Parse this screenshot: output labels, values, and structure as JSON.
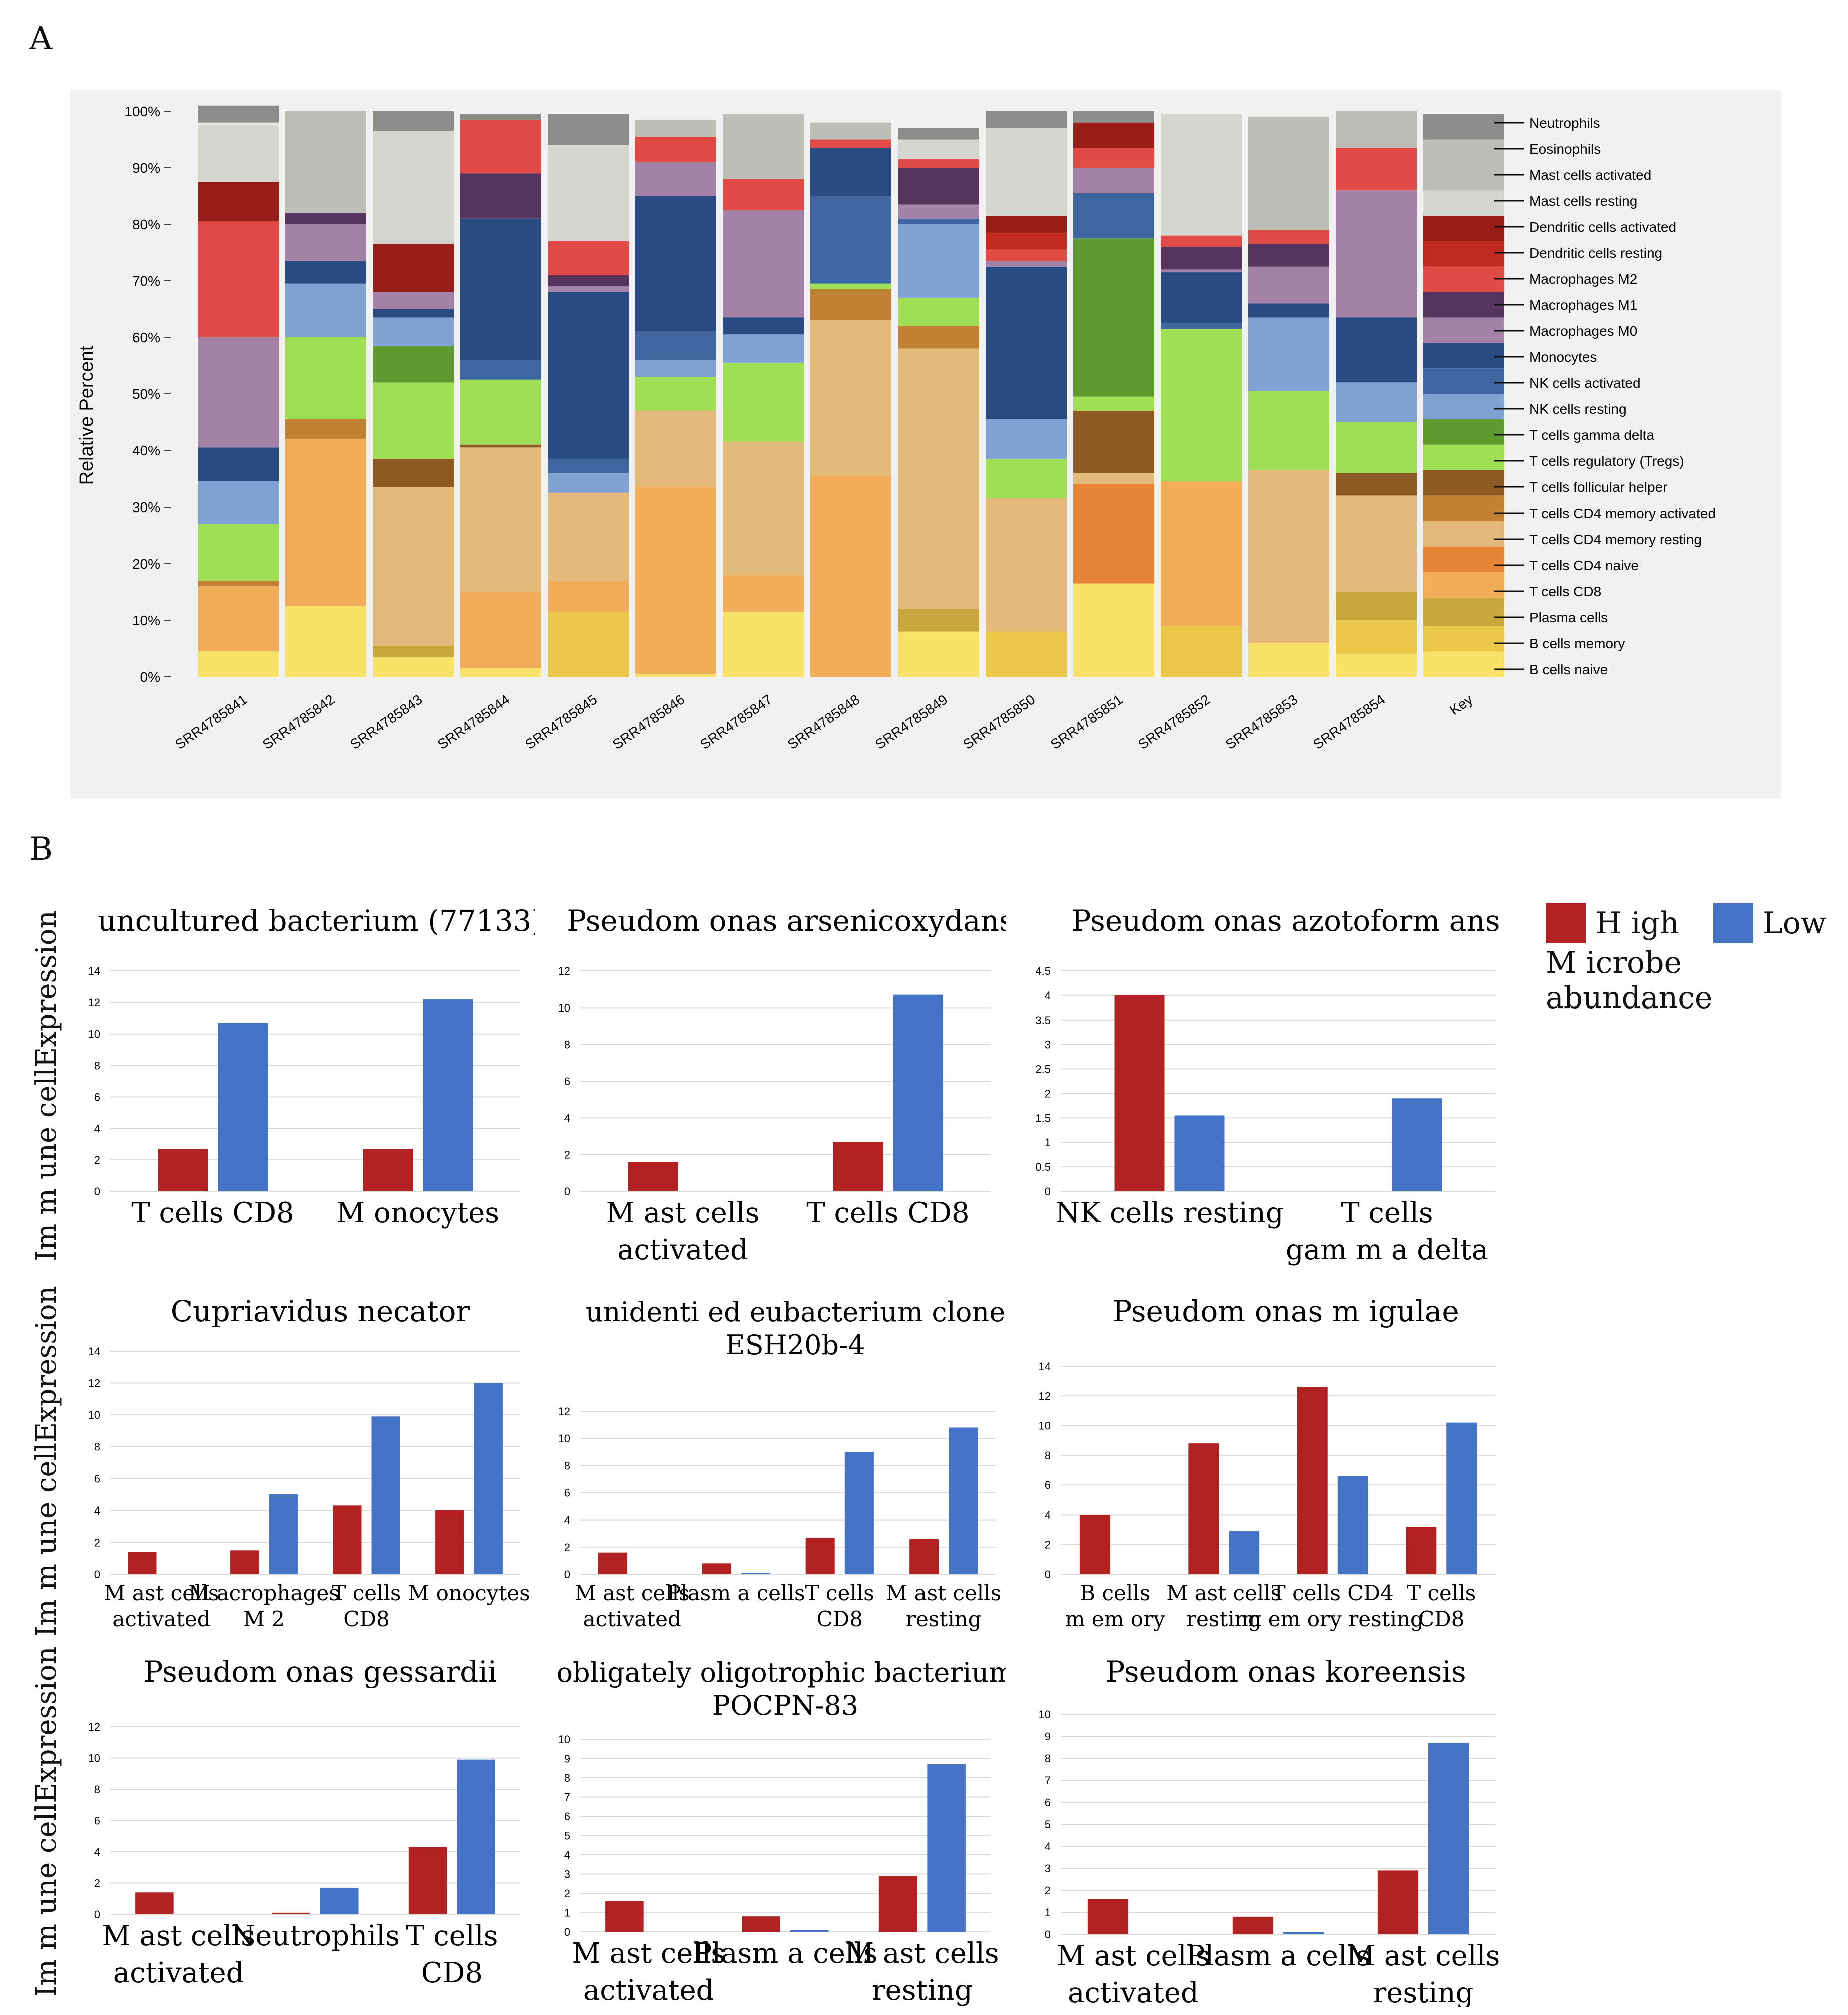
{
  "panel_labels": {
    "a": "A",
    "b": "B"
  },
  "chart_data": [
    {
      "id": "A",
      "type": "bar",
      "stacked": true,
      "ylabel": "Relative Percent",
      "yticks": [
        "0%",
        "10%",
        "20%",
        "30%",
        "40%",
        "50%",
        "60%",
        "70%",
        "80%",
        "90%",
        "100%"
      ],
      "ylim": [
        0,
        100
      ],
      "categories": [
        "SRR4785841",
        "SRR4785842",
        "SRR4785843",
        "SRR4785844",
        "SRR4785845",
        "SRR4785846",
        "SRR4785847",
        "SRR4785848",
        "SRR4785849",
        "SRR4785850",
        "SRR4785851",
        "SRR4785852",
        "SRR4785853",
        "SRR4785854",
        "Key"
      ],
      "series": [
        {
          "name": "B cells naive",
          "color": "#f8e26a",
          "values": [
            4.5,
            12.5,
            3.5,
            1.5,
            0,
            0.5,
            11.5,
            0,
            8,
            0,
            16.5,
            0,
            6,
            4,
            4.5
          ]
        },
        {
          "name": "B cells memory",
          "color": "#e9c84a",
          "values": [
            0,
            0,
            0,
            0,
            11.5,
            0,
            0,
            0,
            0,
            8,
            0,
            9,
            0,
            6,
            4.5
          ]
        },
        {
          "name": "Plasma cells",
          "color": "#c8a83c",
          "values": [
            0,
            0,
            2,
            0,
            0,
            0,
            0,
            0,
            4,
            0,
            0,
            0,
            0,
            5,
            5
          ]
        },
        {
          "name": "T cells CD8",
          "color": "#f2ad5a",
          "values": [
            11.5,
            29.5,
            0,
            13.5,
            5.5,
            33,
            6.5,
            35.5,
            0,
            0,
            0,
            25.5,
            0,
            0,
            4.5
          ]
        },
        {
          "name": "T cells CD4 naive",
          "color": "#e98436",
          "values": [
            0,
            0,
            0,
            0,
            0,
            0,
            0,
            0,
            0,
            0,
            17.5,
            0,
            0,
            0,
            4.5
          ]
        },
        {
          "name": "T cells CD4 memory resting",
          "color": "#e4ba7a",
          "values": [
            0,
            0,
            28,
            25.5,
            15.5,
            13.5,
            23.5,
            27.5,
            46,
            23.5,
            2,
            0,
            30.5,
            17,
            4.5
          ]
        },
        {
          "name": "T cells CD4 memory activated",
          "color": "#c18134",
          "values": [
            1,
            3.5,
            0,
            0,
            0,
            0,
            0,
            5.5,
            4,
            0,
            0,
            0,
            0,
            0,
            4.5
          ]
        },
        {
          "name": "T cells follicular helper",
          "color": "#8d5a24",
          "values": [
            0,
            0,
            5,
            0.5,
            0,
            0,
            0,
            0,
            0,
            0,
            11,
            0,
            0,
            4,
            4.5
          ]
        },
        {
          "name": "T cells regulatory (Tregs)",
          "color": "#a0de55",
          "values": [
            10,
            14.5,
            13.5,
            11.5,
            0,
            6,
            14,
            1,
            5,
            7,
            2.5,
            27,
            14,
            9,
            4.5
          ]
        },
        {
          "name": "T cells gamma delta",
          "color": "#5e9a30",
          "values": [
            0,
            0,
            6.5,
            0,
            0,
            0,
            0,
            0,
            0,
            0,
            28,
            0,
            0,
            0,
            4.5
          ]
        },
        {
          "name": "NK cells resting",
          "color": "#7fa2d2",
          "values": [
            7.5,
            9.5,
            5,
            0,
            3.5,
            3,
            5,
            0,
            13,
            7,
            0,
            0,
            13,
            7,
            4.5
          ]
        },
        {
          "name": "NK cells activated",
          "color": "#3f66a0",
          "values": [
            0,
            0,
            0,
            3.5,
            2.5,
            5,
            0,
            15.5,
            1,
            0,
            8,
            1,
            0,
            0,
            4.5
          ]
        },
        {
          "name": "Monocytes",
          "color": "#2a4b82",
          "values": [
            6,
            4,
            1.5,
            25,
            29.5,
            24,
            3,
            8.5,
            0,
            27,
            0,
            9,
            2.5,
            11.5,
            4.5
          ]
        },
        {
          "name": "Macrophages M0",
          "color": "#a481a6",
          "values": [
            19.5,
            6.5,
            3,
            0,
            1,
            6,
            19,
            0,
            2.5,
            1,
            4.5,
            0.5,
            6.5,
            22.5,
            4.5
          ]
        },
        {
          "name": "Macrophages M1",
          "color": "#56345e",
          "values": [
            0,
            2,
            0,
            8,
            2,
            0,
            0,
            0,
            6.5,
            0,
            0,
            4,
            4,
            0,
            4.5
          ]
        },
        {
          "name": "Macrophages M2",
          "color": "#e04b45",
          "values": [
            20.5,
            0,
            0,
            9.5,
            6,
            4.5,
            5.5,
            1.5,
            1.5,
            2,
            3.5,
            2,
            2.5,
            7.5,
            4.5
          ]
        },
        {
          "name": "Dendritic cells resting",
          "color": "#c22a22",
          "values": [
            0,
            0,
            0,
            0,
            0,
            0,
            0,
            0,
            0,
            3,
            0,
            0,
            0,
            0,
            4.5
          ]
        },
        {
          "name": "Dendritic cells activated",
          "color": "#9a1e18",
          "values": [
            7,
            0,
            8.5,
            0,
            0,
            0,
            0,
            0,
            0,
            3,
            4.5,
            0,
            0,
            0,
            4.5
          ]
        },
        {
          "name": "Mast cells resting",
          "color": "#d4d6d0",
          "values": [
            10,
            0,
            20,
            0,
            17,
            0,
            0,
            0,
            3.5,
            15.5,
            0,
            21.5,
            0,
            0,
            4.5
          ]
        },
        {
          "name": "Mast cells activated",
          "color": "#bcbeb7",
          "values": [
            0,
            18,
            0,
            0,
            0,
            3,
            11.5,
            3,
            0,
            0,
            0,
            0,
            20,
            6.5,
            9
          ]
        },
        {
          "name": "Eosinophils",
          "color": "#e4e5e1",
          "values": [
            0.5,
            0,
            0,
            0,
            0,
            0,
            0,
            0,
            0,
            0,
            0,
            0,
            0,
            0,
            0
          ]
        },
        {
          "name": "Neutrophils",
          "color": "#8b8d89",
          "values": [
            3,
            0,
            3.5,
            1,
            5.5,
            0,
            0,
            0,
            2,
            3,
            2,
            0,
            0,
            0,
            4.5
          ]
        }
      ],
      "legend_order": [
        "Neutrophils",
        "Eosinophils",
        "Mast cells activated",
        "Mast cells resting",
        "Dendritic cells activated",
        "Dendritic cells resting",
        "Macrophages M2",
        "Macrophages M1",
        "Macrophages M0",
        "Monocytes",
        "NK cells activated",
        "NK cells resting",
        "T cells gamma delta",
        "T cells regulatory (Tregs)",
        "T cells follicular helper",
        "T cells CD4 memory activated",
        "T cells CD4 memory resting",
        "T cells CD4 naive",
        "T cells CD8",
        "Plasma cells",
        "B cells memory",
        "B cells naive"
      ],
      "legend_placement": "right"
    },
    {
      "id": "B1",
      "type": "bar",
      "title": [
        "uncultured bacterium  (77133)"
      ],
      "categories": [
        [
          "T cells CD8"
        ],
        [
          "M onocytes"
        ]
      ],
      "ylim": [
        0,
        14
      ],
      "yticks": [
        0,
        2,
        4,
        6,
        8,
        10,
        12,
        14
      ],
      "series": [
        {
          "name": "High",
          "values": [
            2.7,
            2.7
          ]
        },
        {
          "name": "Low",
          "values": [
            10.7,
            12.2
          ]
        }
      ]
    },
    {
      "id": "B2",
      "type": "bar",
      "title": [
        "Pseudom onas arsenicoxydans"
      ],
      "categories": [
        [
          "M ast cells",
          "activated"
        ],
        [
          "T cells CD8"
        ]
      ],
      "ylim": [
        0,
        12
      ],
      "yticks": [
        0,
        2,
        4,
        6,
        8,
        10,
        12
      ],
      "series": [
        {
          "name": "High",
          "values": [
            1.6,
            2.7
          ]
        },
        {
          "name": "Low",
          "values": [
            0,
            10.7
          ]
        }
      ]
    },
    {
      "id": "B3",
      "type": "bar",
      "title": [
        "Pseudom onas azotoform ans"
      ],
      "categories": [
        [
          "NK cells resting"
        ],
        [
          "T cells",
          "gam m a delta"
        ]
      ],
      "ylim": [
        0,
        4.5
      ],
      "yticks": [
        0,
        0.5,
        1,
        1.5,
        2,
        2.5,
        3,
        3.5,
        4,
        4.5
      ],
      "series": [
        {
          "name": "High",
          "values": [
            4.0,
            0
          ]
        },
        {
          "name": "Low",
          "values": [
            1.55,
            1.9
          ]
        }
      ]
    },
    {
      "id": "B4",
      "type": "bar",
      "title": [
        "Cupriavidus necator"
      ],
      "categories": [
        [
          "M ast cells",
          "activated"
        ],
        [
          "M acrophages",
          "M 2"
        ],
        [
          "T cells",
          "CD8"
        ],
        [
          "M onocytes"
        ]
      ],
      "ylim": [
        0,
        14
      ],
      "yticks": [
        0,
        2,
        4,
        6,
        8,
        10,
        12,
        14
      ],
      "series": [
        {
          "name": "High",
          "values": [
            1.4,
            1.5,
            4.3,
            4.0
          ]
        },
        {
          "name": "Low",
          "values": [
            0,
            5.0,
            9.9,
            12.0
          ]
        }
      ]
    },
    {
      "id": "B5",
      "type": "bar",
      "title": [
        "unidenti ed eubacterium  clone",
        "ESH20b-4"
      ],
      "categories": [
        [
          "M ast cells",
          "activated"
        ],
        [
          "Plasm a cells"
        ],
        [
          "T cells",
          "CD8"
        ],
        [
          "M ast cells",
          "resting"
        ]
      ],
      "ylim": [
        0,
        12
      ],
      "yticks": [
        0,
        2,
        4,
        6,
        8,
        10,
        12
      ],
      "series": [
        {
          "name": "High",
          "values": [
            1.6,
            0.8,
            2.7,
            2.6
          ]
        },
        {
          "name": "Low",
          "values": [
            0,
            0.1,
            9.0,
            10.8
          ]
        }
      ]
    },
    {
      "id": "B6",
      "type": "bar",
      "title": [
        "Pseudom onas m igulae"
      ],
      "categories": [
        [
          "B cells",
          "m em ory"
        ],
        [
          "M ast cells",
          "resting"
        ],
        [
          "T cells CD4",
          "m em ory resting"
        ],
        [
          "T cells",
          "CD8"
        ]
      ],
      "ylim": [
        0,
        14
      ],
      "yticks": [
        0,
        2,
        4,
        6,
        8,
        10,
        12,
        14
      ],
      "series": [
        {
          "name": "High",
          "values": [
            4.0,
            8.8,
            12.6,
            3.2
          ]
        },
        {
          "name": "Low",
          "values": [
            0,
            2.9,
            6.6,
            10.2
          ]
        }
      ]
    },
    {
      "id": "B7",
      "type": "bar",
      "title": [
        "Pseudom onas gessardii"
      ],
      "categories": [
        [
          "M ast cells",
          "activated"
        ],
        [
          "Neutrophils"
        ],
        [
          "T cells",
          "CD8"
        ]
      ],
      "ylim": [
        0,
        12
      ],
      "yticks": [
        0,
        2,
        4,
        6,
        8,
        10,
        12
      ],
      "series": [
        {
          "name": "High",
          "values": [
            1.4,
            0.1,
            4.3
          ]
        },
        {
          "name": "Low",
          "values": [
            0,
            1.7,
            9.9
          ]
        }
      ]
    },
    {
      "id": "B8",
      "type": "bar",
      "title": [
        "obligately oligotrophic bacterium",
        "POCPN-83"
      ],
      "categories": [
        [
          "M ast cells",
          "activated"
        ],
        [
          "Plasm a cells"
        ],
        [
          "M ast cells",
          "resting"
        ]
      ],
      "ylim": [
        0,
        10
      ],
      "yticks": [
        0,
        1,
        2,
        3,
        4,
        5,
        6,
        7,
        8,
        9,
        10
      ],
      "series": [
        {
          "name": "High",
          "values": [
            1.6,
            0.8,
            2.9
          ]
        },
        {
          "name": "Low",
          "values": [
            0,
            0.1,
            8.7
          ]
        }
      ]
    },
    {
      "id": "B9",
      "type": "bar",
      "title": [
        "Pseudom onas koreensis"
      ],
      "categories": [
        [
          "M ast cells",
          "activated"
        ],
        [
          "Plasm a cells"
        ],
        [
          "M ast cells",
          "resting"
        ]
      ],
      "ylim": [
        0,
        10
      ],
      "yticks": [
        0,
        1,
        2,
        3,
        4,
        5,
        6,
        7,
        8,
        9,
        10
      ],
      "series": [
        {
          "name": "High",
          "values": [
            1.6,
            0.8,
            2.9
          ]
        },
        {
          "name": "Low",
          "values": [
            0,
            0.1,
            8.7
          ]
        }
      ]
    }
  ],
  "panelB_ylabel": "Im m une cellExpression",
  "panelB_legend": {
    "high_label": "H igh",
    "low_label": "Low",
    "caption": "M icrobe abundance",
    "high_color": "#b22222",
    "low_color": "#4472c4"
  }
}
